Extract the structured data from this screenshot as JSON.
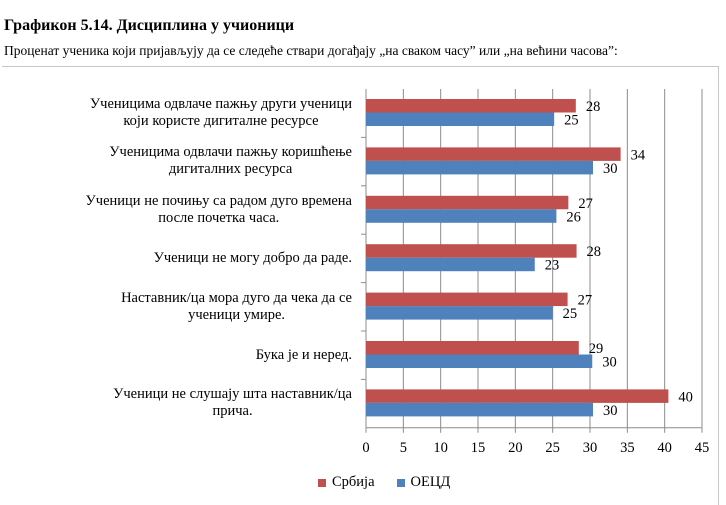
{
  "title": "Графикон 5.14. Дисциплина у учионици",
  "subtitle": "Проценат ученика који пријављују да се следеће ствари догађају „на сваком часу” или „на већини часова”:",
  "chart_data": {
    "type": "bar",
    "orientation": "horizontal",
    "categories": [
      "Ученицима одвлаче пажњу други ученици\nкоји користе дигиталне ресурсе",
      "Ученицима одвлачи пажњу коришћење\nдигиталних ресурса",
      "Ученици не почињу са радом дуго времена\nпосле почетка часа.",
      "Ученици не могу добро да раде.",
      "Наставник/ца мора дуго да чека да се\nученици умире.",
      "Бука је и неред.",
      "Ученици не слушају шта наставник/ца\nприча."
    ],
    "series": [
      {
        "name": "Србија",
        "color": "#c0504d",
        "values": [
          28.1,
          34.1,
          27.1,
          28.2,
          27.0,
          28.5,
          40.5
        ],
        "labels": [
          "28",
          "34",
          "27",
          "28",
          "27",
          "29",
          "40"
        ]
      },
      {
        "name": "ОЕЦД",
        "color": "#4f81bd",
        "values": [
          25.2,
          30.4,
          25.5,
          22.6,
          25.0,
          30.3,
          30.4
        ],
        "labels": [
          "25",
          "30",
          "26",
          "23",
          "25",
          "30",
          "30"
        ]
      }
    ],
    "xlim": [
      0,
      45
    ],
    "xticks": [
      "0",
      "5",
      "10",
      "15",
      "20",
      "25",
      "30",
      "35",
      "40",
      "45"
    ],
    "grid": true,
    "legend": "bottom"
  }
}
